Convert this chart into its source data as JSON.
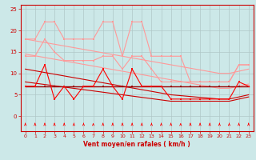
{
  "x": [
    0,
    1,
    2,
    3,
    4,
    5,
    6,
    7,
    8,
    9,
    10,
    11,
    12,
    13,
    14,
    15,
    16,
    17,
    18,
    19,
    20,
    21,
    22,
    23
  ],
  "line_upper_zigzag": [
    18,
    18,
    22,
    22,
    18,
    18,
    18,
    18,
    22,
    22,
    14,
    22,
    22,
    14,
    14,
    14,
    14,
    8,
    8,
    8,
    8,
    8,
    12,
    12
  ],
  "line_mid_zigzag": [
    14,
    14,
    18,
    15,
    13,
    13,
    13,
    13,
    14,
    14,
    11,
    14,
    14,
    11,
    8,
    8,
    8,
    8,
    8,
    8,
    8,
    8,
    12,
    12
  ],
  "line_trend_upper": [
    18.0,
    17.6,
    17.2,
    16.8,
    16.4,
    16.0,
    15.6,
    15.2,
    14.8,
    14.4,
    14.0,
    13.6,
    13.2,
    12.8,
    12.4,
    12.0,
    11.6,
    11.2,
    10.8,
    10.4,
    10.0,
    10.0,
    10.5,
    11.0
  ],
  "line_trend_mid": [
    14.5,
    14.1,
    13.7,
    13.3,
    12.9,
    12.5,
    12.1,
    11.7,
    11.3,
    10.9,
    10.5,
    10.1,
    9.7,
    9.3,
    8.9,
    8.5,
    8.1,
    7.7,
    7.3,
    6.9,
    6.5,
    6.5,
    7.0,
    7.5
  ],
  "line_dark_flat": [
    7,
    7,
    7,
    7,
    7,
    7,
    7,
    7,
    7,
    7,
    7,
    7,
    7,
    7,
    7,
    7,
    7,
    7,
    7,
    7,
    7,
    7,
    7,
    7
  ],
  "line_red_zigzag": [
    7,
    7,
    12,
    4,
    7,
    4,
    7,
    7,
    11,
    7,
    4,
    11,
    7,
    7,
    7,
    4,
    4,
    4,
    4,
    4,
    4,
    4,
    8,
    7
  ],
  "line_trend_low": [
    11.0,
    10.6,
    10.2,
    9.8,
    9.4,
    9.0,
    8.6,
    8.2,
    7.8,
    7.4,
    7.0,
    6.6,
    6.2,
    5.8,
    5.4,
    5.0,
    4.8,
    4.6,
    4.4,
    4.2,
    4.0,
    4.0,
    4.5,
    5.0
  ],
  "line_trend_bottom": [
    8.0,
    7.7,
    7.4,
    7.1,
    6.8,
    6.5,
    6.2,
    5.9,
    5.6,
    5.3,
    5.0,
    4.7,
    4.4,
    4.1,
    3.8,
    3.5,
    3.5,
    3.5,
    3.5,
    3.5,
    3.5,
    3.5,
    4.0,
    4.5
  ],
  "bg_color": "#cce8e8",
  "grid_color": "#b0c8c8",
  "color_light_pink": "#ff9999",
  "color_dark_red": "#cc0000",
  "color_bright_red": "#ff0000",
  "color_dark_maroon": "#990000",
  "xlabel": "Vent moyen/en rafales ( km/h )",
  "xlim": [
    -0.5,
    23.5
  ],
  "ylim": [
    -3.5,
    26
  ],
  "yticks": [
    0,
    5,
    10,
    15,
    20,
    25
  ],
  "xticks": [
    0,
    1,
    2,
    3,
    4,
    5,
    6,
    7,
    8,
    9,
    10,
    11,
    12,
    13,
    14,
    15,
    16,
    17,
    18,
    19,
    20,
    21,
    22,
    23
  ]
}
